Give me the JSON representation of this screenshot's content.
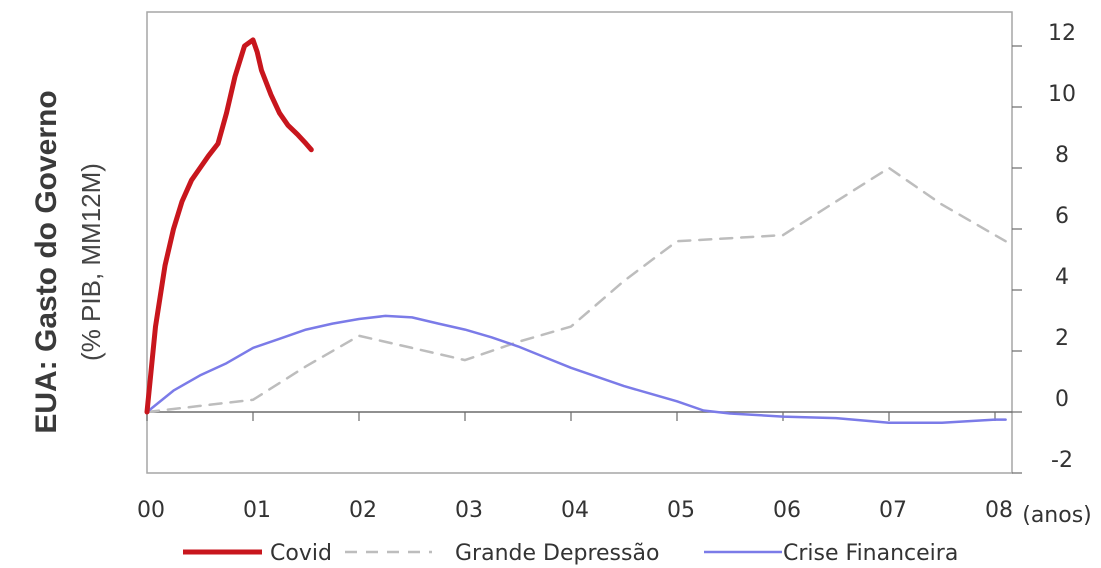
{
  "chart_data": {
    "type": "line",
    "ylabel": "EUA: Gasto do Governo",
    "ylabel_sub": "(% PIB, MM12M)",
    "xunit": "(anos)",
    "xlim": [
      0,
      8.1
    ],
    "ylim": [
      -2,
      13
    ],
    "x_ticks": [
      0,
      1,
      2,
      3,
      4,
      5,
      6,
      7,
      8
    ],
    "x_tick_labels": [
      "00",
      "01",
      "02",
      "03",
      "04",
      "05",
      "06",
      "07",
      "08"
    ],
    "y_ticks": [
      12,
      10,
      8,
      6,
      4,
      2,
      0,
      -2
    ],
    "y_tick_labels": [
      "12",
      "10",
      "8",
      "6",
      "4",
      "2",
      "0",
      "-2"
    ],
    "y_axis_side": "right",
    "legend_position": "bottom",
    "series": [
      {
        "name": "Covid",
        "color": "#c8161d",
        "style": "solid-thick",
        "x": [
          0,
          0.08,
          0.17,
          0.25,
          0.33,
          0.42,
          0.5,
          0.58,
          0.67,
          0.75,
          0.83,
          0.92,
          1.0,
          1.04,
          1.08,
          1.17,
          1.25,
          1.33,
          1.42,
          1.5,
          1.55
        ],
        "y": [
          0,
          2.8,
          4.8,
          6.0,
          6.9,
          7.6,
          8.0,
          8.4,
          8.8,
          9.8,
          11.0,
          12.0,
          12.2,
          11.8,
          11.2,
          10.4,
          9.8,
          9.4,
          9.1,
          8.8,
          8.6
        ]
      },
      {
        "name": "Grande Depressão",
        "color": "#bdbdbd",
        "style": "dashed",
        "x": [
          0,
          0.5,
          1.0,
          1.5,
          2.0,
          2.5,
          3.0,
          3.5,
          4.0,
          4.5,
          5.0,
          5.5,
          6.0,
          6.5,
          7.0,
          7.5,
          8.1
        ],
        "y": [
          0,
          0.2,
          0.4,
          1.5,
          2.5,
          2.1,
          1.7,
          2.3,
          2.8,
          4.3,
          5.6,
          5.7,
          5.8,
          6.9,
          8.0,
          6.8,
          5.6
        ]
      },
      {
        "name": "Crise Financeira",
        "color": "#7b7be8",
        "style": "solid",
        "x": [
          0,
          0.25,
          0.5,
          0.75,
          1.0,
          1.25,
          1.5,
          1.75,
          2.0,
          2.25,
          2.5,
          2.75,
          3.0,
          3.25,
          3.5,
          3.75,
          4.0,
          4.25,
          4.5,
          4.75,
          5.0,
          5.25,
          5.5,
          6.0,
          6.5,
          7.0,
          7.5,
          8.0,
          8.1
        ],
        "y": [
          0,
          0.7,
          1.2,
          1.6,
          2.1,
          2.4,
          2.7,
          2.9,
          3.05,
          3.15,
          3.1,
          2.9,
          2.7,
          2.45,
          2.15,
          1.8,
          1.45,
          1.15,
          0.85,
          0.6,
          0.35,
          0.05,
          -0.05,
          -0.15,
          -0.2,
          -0.35,
          -0.35,
          -0.25,
          -0.25
        ]
      }
    ]
  }
}
